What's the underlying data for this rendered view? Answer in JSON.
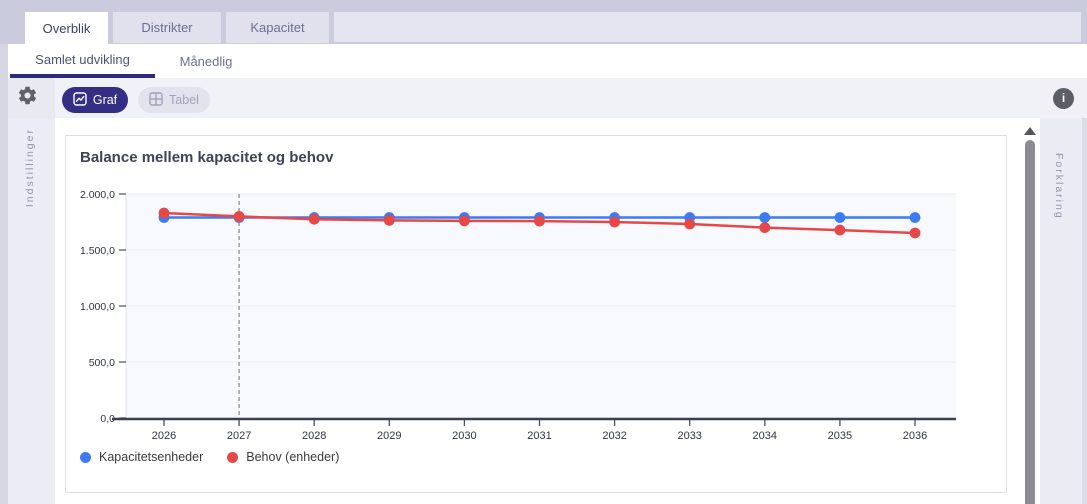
{
  "tabs": [
    {
      "label": "Overblik",
      "active": true
    },
    {
      "label": "Distrikter",
      "active": false
    },
    {
      "label": "Kapacitet",
      "active": false
    }
  ],
  "subtabs": [
    {
      "label": "Samlet udvikling",
      "active": true
    },
    {
      "label": "Månedlig",
      "active": false
    }
  ],
  "toolbar": {
    "graf_label": "Graf",
    "tabel_label": "Tabel"
  },
  "icons": {
    "settings": "gear",
    "info": "i",
    "scroll_up": "triangle-up",
    "graf": "line-chart-box",
    "tabel": "table-grid"
  },
  "side_panels": {
    "left_label": "Indstillinger",
    "right_label": "Forklaring"
  },
  "colors": {
    "accent_indigo": "#332f85",
    "series_blue": "#3c7bf2",
    "series_red": "#e64747",
    "top_bg": "#cacbdc"
  },
  "chart_data": {
    "type": "line",
    "title": "Balance mellem kapacitet og behov",
    "x": [
      2026,
      2027,
      2028,
      2029,
      2030,
      2031,
      2032,
      2033,
      2034,
      2035,
      2036
    ],
    "series": [
      {
        "name": "Kapacitetsenheder",
        "color": "#3c7bf2",
        "values": [
          1790,
          1790,
          1790,
          1790,
          1790,
          1790,
          1790,
          1790,
          1790,
          1790,
          1790
        ]
      },
      {
        "name": "Behov (enheder)",
        "color": "#e64747",
        "values": [
          1830,
          1800,
          1775,
          1765,
          1760,
          1758,
          1750,
          1732,
          1700,
          1678,
          1652
        ]
      }
    ],
    "ylim": [
      0,
      2000
    ],
    "yticks": [
      0,
      500,
      1000,
      1500,
      2000
    ],
    "ytick_labels": [
      "0,0",
      "500,0",
      "1.000,0",
      "1.500,0",
      "2.000,0"
    ],
    "dashed_marker_x": 2027,
    "grid": true,
    "legend_position": "bottom"
  }
}
